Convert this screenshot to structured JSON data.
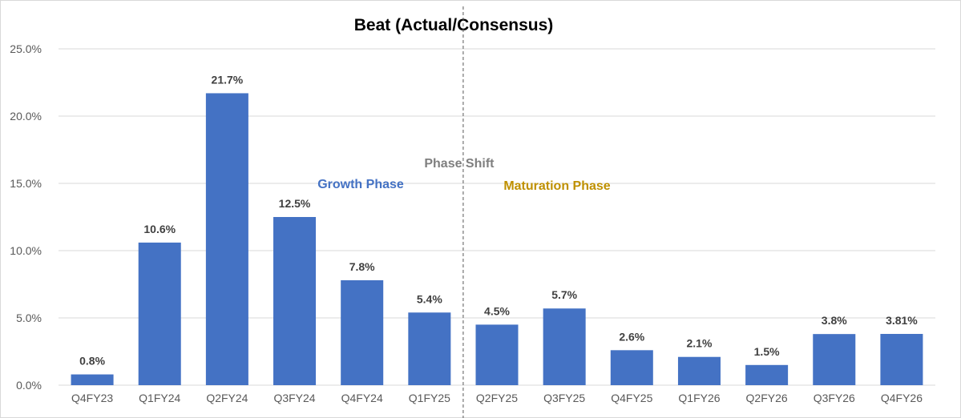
{
  "chart_data": {
    "type": "bar",
    "title": "Beat (Actual/Consensus)",
    "xlabel": "",
    "ylabel": "",
    "ylim": [
      0,
      25
    ],
    "y_ticks": [
      "0.0%",
      "5.0%",
      "10.0%",
      "15.0%",
      "20.0%",
      "25.0%"
    ],
    "grid": true,
    "categories": [
      "Q4FY23",
      "Q1FY24",
      "Q2FY24",
      "Q3FY24",
      "Q4FY24",
      "Q1FY25",
      "Q2FY25",
      "Q3FY25",
      "Q4FY25",
      "Q1FY26",
      "Q2FY26",
      "Q3FY26",
      "Q4FY26"
    ],
    "values": [
      0.8,
      10.6,
      21.7,
      12.5,
      7.8,
      5.4,
      4.5,
      5.7,
      2.6,
      2.1,
      1.5,
      3.8,
      3.81
    ],
    "value_labels": [
      "0.8%",
      "10.6%",
      "21.7%",
      "12.5%",
      "7.8%",
      "5.4%",
      "4.5%",
      "5.7%",
      "2.6%",
      "2.1%",
      "1.5%",
      "3.8%",
      "3.81%"
    ],
    "bar_color": "#4472C4",
    "annotations": {
      "divider_label": "Phase Shift",
      "divider_after_category": "Q1FY25",
      "left_phase": "Growth Phase",
      "right_phase": "Maturation Phase"
    },
    "colors": {
      "left_phase": "#4472C4",
      "right_phase": "#BF9000",
      "divider_label": "#7F7F7F",
      "divider_line": "#595959",
      "gridline": "#D9D9D9",
      "axis_text": "#595959",
      "data_label": "#404040"
    }
  }
}
